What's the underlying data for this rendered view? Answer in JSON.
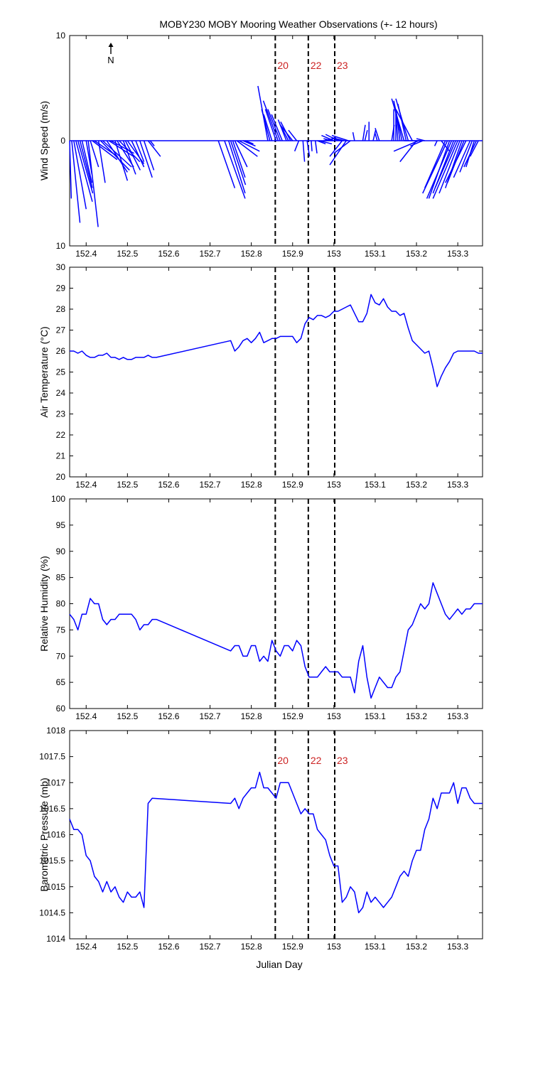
{
  "title": "MOBY230 MOBY Mooring Weather Observations (+- 12 hours)",
  "xlabel": "Julian Day",
  "north_label": "N",
  "colors": {
    "series": "#0000ff",
    "marker_label": "#cc2222",
    "axis": "#000000"
  },
  "markers": [
    {
      "x": 152.858,
      "label": "20"
    },
    {
      "x": 152.938,
      "label": "22"
    },
    {
      "x": 153.002,
      "label": "23"
    }
  ],
  "xlim": [
    152.36,
    153.36
  ],
  "xticks": [
    152.4,
    152.5,
    152.6,
    152.7,
    152.8,
    152.9,
    153,
    153.1,
    153.2,
    153.3
  ],
  "xtick_labels": [
    "152.4",
    "152.5",
    "152.6",
    "152.7",
    "152.8",
    "152.9",
    "153",
    "153.1",
    "153.2",
    "153.3"
  ],
  "chart_data": [
    {
      "type": "quiver",
      "ylabel": "Wind Speed (m/s)",
      "ylim": [
        -10,
        10
      ],
      "yticks": [
        -10,
        0,
        10
      ],
      "ytick_labels": [
        "10",
        "0",
        "10"
      ],
      "show_marker_labels": true,
      "vectors": [
        {
          "x": 152.36,
          "u": 0.2,
          "v": -5.5
        },
        {
          "x": 152.365,
          "u": 1.0,
          "v": -7.8
        },
        {
          "x": 152.37,
          "u": 1.5,
          "v": -6.5
        },
        {
          "x": 152.375,
          "u": 2.0,
          "v": -5.8
        },
        {
          "x": 152.38,
          "u": 1.8,
          "v": -5.0
        },
        {
          "x": 152.385,
          "u": 1.5,
          "v": -4.5
        },
        {
          "x": 152.39,
          "u": 1.2,
          "v": -4.0
        },
        {
          "x": 152.4,
          "u": 0.7,
          "v": -3.2
        },
        {
          "x": 152.405,
          "u": 1.2,
          "v": -8.2
        },
        {
          "x": 152.41,
          "u": 1.0,
          "v": -2.5
        },
        {
          "x": 152.415,
          "u": 3.0,
          "v": -1.8
        },
        {
          "x": 152.42,
          "u": 2.8,
          "v": -1.5
        },
        {
          "x": 152.43,
          "u": 0.8,
          "v": -4.0
        },
        {
          "x": 152.435,
          "u": 3.5,
          "v": -2.8
        },
        {
          "x": 152.44,
          "u": 3.5,
          "v": -2.5
        },
        {
          "x": 152.45,
          "u": 2.5,
          "v": -3.0
        },
        {
          "x": 152.455,
          "u": 3.0,
          "v": -1.5
        },
        {
          "x": 152.46,
          "u": 2.8,
          "v": -1.2
        },
        {
          "x": 152.47,
          "u": 1.5,
          "v": -3.8
        },
        {
          "x": 152.475,
          "u": 2.0,
          "v": -2.5
        },
        {
          "x": 152.48,
          "u": 2.5,
          "v": -2.0
        },
        {
          "x": 152.49,
          "u": 1.5,
          "v": -3.2
        },
        {
          "x": 152.495,
          "u": 1.8,
          "v": -2.8
        },
        {
          "x": 152.5,
          "u": 2.0,
          "v": -2.2
        },
        {
          "x": 152.51,
          "u": 1.5,
          "v": -2.5
        },
        {
          "x": 152.52,
          "u": 1.0,
          "v": -2.0
        },
        {
          "x": 152.53,
          "u": 1.5,
          "v": -3.5
        },
        {
          "x": 152.54,
          "u": 1.2,
          "v": -2.8
        },
        {
          "x": 152.55,
          "u": 1.5,
          "v": -1.5
        },
        {
          "x": 152.555,
          "u": 0.5,
          "v": -0.5
        },
        {
          "x": 152.72,
          "u": 2.0,
          "v": -4.5
        },
        {
          "x": 152.735,
          "u": 2.5,
          "v": -5.5
        },
        {
          "x": 152.745,
          "u": 2.0,
          "v": -5.0
        },
        {
          "x": 152.75,
          "u": 1.8,
          "v": -4.2
        },
        {
          "x": 152.755,
          "u": 1.5,
          "v": -3.5
        },
        {
          "x": 152.76,
          "u": 1.5,
          "v": -2.5
        },
        {
          "x": 152.765,
          "u": 2.5,
          "v": -1.5
        },
        {
          "x": 152.77,
          "u": 2.5,
          "v": -1.0
        },
        {
          "x": 152.78,
          "u": 1.5,
          "v": -0.5
        },
        {
          "x": 152.785,
          "u": 1.0,
          "v": -0.3
        },
        {
          "x": 152.84,
          "u": -1.2,
          "v": 5.2
        },
        {
          "x": 152.845,
          "u": -1.0,
          "v": 3.0
        },
        {
          "x": 152.85,
          "u": -1.0,
          "v": 2.5
        },
        {
          "x": 152.86,
          "u": -1.3,
          "v": 3.0
        },
        {
          "x": 152.865,
          "u": -1.8,
          "v": 3.8
        },
        {
          "x": 152.87,
          "u": -1.5,
          "v": 3.0
        },
        {
          "x": 152.875,
          "u": -1.3,
          "v": 2.5
        },
        {
          "x": 152.885,
          "u": -1.0,
          "v": 2.0
        },
        {
          "x": 152.89,
          "u": -1.0,
          "v": 1.5
        },
        {
          "x": 152.895,
          "u": -1.2,
          "v": 1.8
        },
        {
          "x": 152.9,
          "u": -1.5,
          "v": 1.5
        },
        {
          "x": 152.91,
          "u": -1.0,
          "v": 1.0
        },
        {
          "x": 152.915,
          "u": -0.5,
          "v": -1.0
        },
        {
          "x": 152.925,
          "u": 0.2,
          "v": -2.0
        },
        {
          "x": 152.935,
          "u": 0.3,
          "v": -1.5
        },
        {
          "x": 152.945,
          "u": 0.1,
          "v": -1.0
        },
        {
          "x": 152.955,
          "u": 0.2,
          "v": -1.2
        },
        {
          "x": 152.96,
          "u": 1.0,
          "v": -0.3
        },
        {
          "x": 152.965,
          "u": 1.5,
          "v": -0.3
        },
        {
          "x": 152.975,
          "u": 1.2,
          "v": 0.2
        },
        {
          "x": 152.985,
          "u": 1.0,
          "v": 0.3
        },
        {
          "x": 152.995,
          "u": -1.0,
          "v": 0.2
        },
        {
          "x": 153.0,
          "u": -1.5,
          "v": 0.5
        },
        {
          "x": 153.01,
          "u": -1.5,
          "v": 0.6
        },
        {
          "x": 153.015,
          "u": -0.8,
          "v": 0.2
        },
        {
          "x": 153.02,
          "u": -1.5,
          "v": -1.5
        },
        {
          "x": 153.025,
          "u": -1.5,
          "v": 0.3
        },
        {
          "x": 153.03,
          "u": -2.0,
          "v": -2.3
        },
        {
          "x": 153.035,
          "u": -2.0,
          "v": 0.5
        },
        {
          "x": 153.04,
          "u": -2.0,
          "v": -1.2
        },
        {
          "x": 153.05,
          "u": -0.2,
          "v": 0.8
        },
        {
          "x": 153.07,
          "u": 0.3,
          "v": 1.5
        },
        {
          "x": 153.075,
          "u": 0.3,
          "v": 1.0
        },
        {
          "x": 153.085,
          "u": 0.0,
          "v": 1.8
        },
        {
          "x": 153.095,
          "u": 0.3,
          "v": 1.0
        },
        {
          "x": 153.105,
          "u": -0.3,
          "v": 0.8
        },
        {
          "x": 153.11,
          "u": -0.5,
          "v": 1.2
        },
        {
          "x": 153.14,
          "u": 0.3,
          "v": 1.5
        },
        {
          "x": 153.145,
          "u": 0.0,
          "v": 3.0
        },
        {
          "x": 153.15,
          "u": 0.0,
          "v": 2.5
        },
        {
          "x": 153.155,
          "u": -0.3,
          "v": 3.0
        },
        {
          "x": 153.16,
          "u": -0.5,
          "v": 3.0
        },
        {
          "x": 153.165,
          "u": -1.0,
          "v": 3.8
        },
        {
          "x": 153.17,
          "u": -1.5,
          "v": 4.0
        },
        {
          "x": 153.175,
          "u": -1.0,
          "v": 3.5
        },
        {
          "x": 153.18,
          "u": -1.5,
          "v": 4.0
        },
        {
          "x": 153.19,
          "u": -2.0,
          "v": 3.0
        },
        {
          "x": 153.2,
          "u": -2.0,
          "v": -2.0
        },
        {
          "x": 153.205,
          "u": -3.0,
          "v": -1.0
        },
        {
          "x": 153.21,
          "u": -2.0,
          "v": 0.0
        },
        {
          "x": 153.215,
          "u": -1.5,
          "v": -0.5
        },
        {
          "x": 153.22,
          "u": -1.0,
          "v": 0.2
        },
        {
          "x": 153.25,
          "u": -0.3,
          "v": -0.5
        },
        {
          "x": 153.26,
          "u": 1.0,
          "v": -1.0
        },
        {
          "x": 153.27,
          "u": -2.5,
          "v": -4.5
        },
        {
          "x": 153.275,
          "u": -3.0,
          "v": -5.0
        },
        {
          "x": 153.28,
          "u": -2.5,
          "v": -5.5
        },
        {
          "x": 153.285,
          "u": -3.0,
          "v": -5.5
        },
        {
          "x": 153.29,
          "u": -2.5,
          "v": -5.0
        },
        {
          "x": 153.295,
          "u": -2.5,
          "v": -4.5
        },
        {
          "x": 153.3,
          "u": -3.0,
          "v": -5.5
        },
        {
          "x": 153.305,
          "u": -2.5,
          "v": -5.0
        },
        {
          "x": 153.31,
          "u": -2.0,
          "v": -4.5
        },
        {
          "x": 153.315,
          "u": -2.0,
          "v": -4.0
        },
        {
          "x": 153.32,
          "u": -2.5,
          "v": -4.0
        },
        {
          "x": 153.33,
          "u": -2.0,
          "v": -3.5
        },
        {
          "x": 153.335,
          "u": -1.5,
          "v": -3.0
        },
        {
          "x": 153.34,
          "u": -1.0,
          "v": -2.5
        },
        {
          "x": 153.345,
          "u": -1.5,
          "v": -2.5
        },
        {
          "x": 153.35,
          "u": -1.0,
          "v": -1.5
        }
      ]
    },
    {
      "type": "line",
      "ylabel": "Air Temperature (°C)",
      "ylim": [
        20,
        30
      ],
      "yticks": [
        20,
        21,
        22,
        23,
        24,
        25,
        26,
        27,
        28,
        29,
        30
      ],
      "ytick_labels": [
        "20",
        "21",
        "22",
        "23",
        "24",
        "25",
        "26",
        "27",
        "28",
        "29",
        "30"
      ],
      "show_marker_labels": false,
      "x": [
        152.36,
        152.37,
        152.38,
        152.39,
        152.4,
        152.41,
        152.42,
        152.43,
        152.44,
        152.45,
        152.46,
        152.47,
        152.48,
        152.49,
        152.5,
        152.51,
        152.52,
        152.53,
        152.54,
        152.55,
        152.56,
        152.57,
        152.75,
        152.76,
        152.77,
        152.78,
        152.79,
        152.8,
        152.81,
        152.82,
        152.83,
        152.84,
        152.85,
        152.86,
        152.87,
        152.88,
        152.89,
        152.9,
        152.91,
        152.92,
        152.93,
        152.94,
        152.95,
        152.96,
        152.97,
        152.98,
        152.99,
        153.0,
        153.01,
        153.02,
        153.03,
        153.04,
        153.05,
        153.06,
        153.07,
        153.08,
        153.09,
        153.1,
        153.11,
        153.12,
        153.13,
        153.14,
        153.15,
        153.16,
        153.17,
        153.18,
        153.19,
        153.2,
        153.21,
        153.22,
        153.23,
        153.24,
        153.25,
        153.26,
        153.27,
        153.28,
        153.29,
        153.3,
        153.31,
        153.32,
        153.33,
        153.34,
        153.35,
        153.36
      ],
      "y": [
        26.0,
        26.0,
        25.9,
        26.0,
        25.8,
        25.7,
        25.7,
        25.8,
        25.8,
        25.9,
        25.7,
        25.7,
        25.6,
        25.7,
        25.6,
        25.6,
        25.7,
        25.7,
        25.7,
        25.8,
        25.7,
        25.7,
        26.5,
        26.0,
        26.2,
        26.5,
        26.6,
        26.4,
        26.6,
        26.9,
        26.4,
        26.5,
        26.6,
        26.6,
        26.7,
        26.7,
        26.7,
        26.7,
        26.4,
        26.6,
        27.3,
        27.6,
        27.5,
        27.7,
        27.7,
        27.6,
        27.7,
        27.9,
        27.9,
        28.0,
        28.1,
        28.2,
        27.8,
        27.4,
        27.4,
        27.8,
        28.7,
        28.3,
        28.2,
        28.5,
        28.1,
        27.9,
        27.9,
        27.7,
        27.8,
        27.1,
        26.5,
        26.3,
        26.1,
        25.9,
        26.0,
        25.2,
        24.3,
        24.8,
        25.2,
        25.5,
        25.9,
        26.0,
        26.0,
        26.0,
        26.0,
        26.0,
        25.9,
        25.9
      ]
    },
    {
      "type": "line",
      "ylabel": "Relative Humidity (%)",
      "ylim": [
        60,
        100
      ],
      "yticks": [
        60,
        65,
        70,
        75,
        80,
        85,
        90,
        95,
        100
      ],
      "ytick_labels": [
        "60",
        "65",
        "70",
        "75",
        "80",
        "85",
        "90",
        "95",
        "100"
      ],
      "show_marker_labels": false,
      "x": [
        152.36,
        152.37,
        152.38,
        152.39,
        152.4,
        152.41,
        152.42,
        152.43,
        152.44,
        152.45,
        152.46,
        152.47,
        152.48,
        152.49,
        152.5,
        152.51,
        152.52,
        152.53,
        152.54,
        152.55,
        152.56,
        152.57,
        152.75,
        152.76,
        152.77,
        152.78,
        152.79,
        152.8,
        152.81,
        152.82,
        152.83,
        152.84,
        152.85,
        152.86,
        152.87,
        152.88,
        152.89,
        152.9,
        152.91,
        152.92,
        152.93,
        152.94,
        152.95,
        152.96,
        152.97,
        152.98,
        152.99,
        153.0,
        153.01,
        153.02,
        153.03,
        153.04,
        153.05,
        153.06,
        153.07,
        153.08,
        153.09,
        153.1,
        153.11,
        153.12,
        153.13,
        153.14,
        153.15,
        153.16,
        153.17,
        153.18,
        153.19,
        153.2,
        153.21,
        153.22,
        153.23,
        153.24,
        153.25,
        153.26,
        153.27,
        153.28,
        153.29,
        153.3,
        153.31,
        153.32,
        153.33,
        153.34,
        153.35,
        153.36
      ],
      "y": [
        78,
        77,
        75,
        78,
        78,
        81,
        80,
        80,
        77,
        76,
        77,
        77,
        78,
        78,
        78,
        78,
        77,
        75,
        76,
        76,
        77,
        77,
        71,
        72,
        72,
        70,
        70,
        72,
        72,
        69,
        70,
        69,
        73,
        71,
        70,
        72,
        72,
        71,
        73,
        72,
        68,
        66,
        66,
        66,
        67,
        68,
        67,
        67,
        67,
        66,
        66,
        66,
        63,
        69,
        72,
        66,
        62,
        64,
        66,
        65,
        64,
        64,
        66,
        67,
        71,
        75,
        76,
        78,
        80,
        79,
        80,
        84,
        82,
        80,
        78,
        77,
        78,
        79,
        78,
        79,
        79,
        80,
        80,
        80
      ]
    },
    {
      "type": "line",
      "ylabel": "Barometric Pressure (mb)",
      "ylim": [
        1014,
        1018
      ],
      "yticks": [
        1014,
        1014.5,
        1015,
        1015.5,
        1016,
        1016.5,
        1017,
        1017.5,
        1018
      ],
      "ytick_labels": [
        "1014",
        "1014.5",
        "1015",
        "1015.5",
        "1016",
        "1016.5",
        "1017",
        "1017.5",
        "1018"
      ],
      "show_marker_labels": true,
      "x": [
        152.36,
        152.37,
        152.38,
        152.39,
        152.4,
        152.41,
        152.42,
        152.43,
        152.44,
        152.45,
        152.46,
        152.47,
        152.48,
        152.49,
        152.5,
        152.51,
        152.52,
        152.53,
        152.54,
        152.55,
        152.56,
        152.75,
        152.76,
        152.77,
        152.78,
        152.79,
        152.8,
        152.81,
        152.82,
        152.83,
        152.84,
        152.85,
        152.86,
        152.87,
        152.88,
        152.89,
        152.9,
        152.91,
        152.92,
        152.93,
        152.94,
        152.95,
        152.96,
        152.97,
        152.98,
        152.99,
        153.0,
        153.01,
        153.02,
        153.03,
        153.04,
        153.05,
        153.06,
        153.07,
        153.08,
        153.09,
        153.1,
        153.11,
        153.12,
        153.13,
        153.14,
        153.15,
        153.16,
        153.17,
        153.18,
        153.19,
        153.2,
        153.21,
        153.22,
        153.23,
        153.24,
        153.25,
        153.26,
        153.27,
        153.28,
        153.29,
        153.3,
        153.31,
        153.32,
        153.33,
        153.34,
        153.35,
        153.36
      ],
      "y": [
        1016.3,
        1016.1,
        1016.1,
        1016.0,
        1015.6,
        1015.5,
        1015.2,
        1015.1,
        1014.9,
        1015.1,
        1014.9,
        1015.0,
        1014.8,
        1014.7,
        1014.9,
        1014.8,
        1014.8,
        1014.9,
        1014.6,
        1016.6,
        1016.7,
        1016.6,
        1016.7,
        1016.5,
        1016.7,
        1016.8,
        1016.9,
        1016.9,
        1017.2,
        1016.9,
        1016.9,
        1016.8,
        1016.7,
        1017.0,
        1017.0,
        1017.0,
        1016.8,
        1016.6,
        1016.4,
        1016.5,
        1016.4,
        1016.4,
        1016.1,
        1016.0,
        1015.9,
        1015.6,
        1015.4,
        1015.4,
        1014.7,
        1014.8,
        1015.0,
        1014.9,
        1014.5,
        1014.6,
        1014.9,
        1014.7,
        1014.8,
        1014.7,
        1014.6,
        1014.7,
        1014.8,
        1015.0,
        1015.2,
        1015.3,
        1015.2,
        1015.5,
        1015.7,
        1015.7,
        1016.1,
        1016.3,
        1016.7,
        1016.5,
        1016.8,
        1016.8,
        1016.8,
        1017.0,
        1016.6,
        1016.9,
        1016.9,
        1016.7,
        1016.6,
        1016.6,
        1016.6
      ]
    }
  ]
}
